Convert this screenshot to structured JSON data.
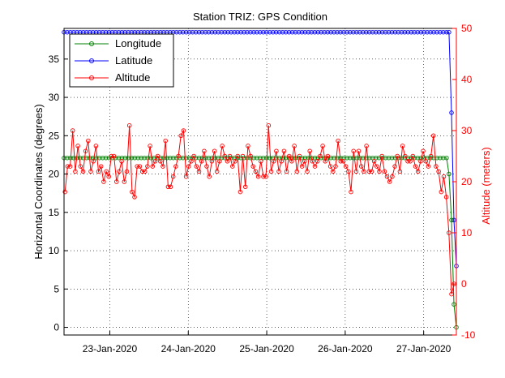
{
  "chart_data": {
    "type": "line",
    "title": "Station TRIZ: GPS Condition",
    "ylabel_left": "Horizontal Coordinates (degrees)",
    "ylabel_right": "Altitude (meters)",
    "x_tick_labels": [
      "23-Jan-2020",
      "24-Jan-2020",
      "25-Jan-2020",
      "26-Jan-2020",
      "27-Jan-2020"
    ],
    "x_tick_dates": [
      "2020-01-23",
      "2020-01-24",
      "2020-01-25",
      "2020-01-26",
      "2020-01-27"
    ],
    "xlim": [
      "2020-01-22 10:00",
      "2020-01-27 10:00"
    ],
    "ylim_left": [
      -1,
      39
    ],
    "yticks_left": [
      0,
      5,
      10,
      15,
      20,
      25,
      30,
      35
    ],
    "ylim_right": [
      -10,
      50
    ],
    "yticks_right": [
      -10,
      0,
      10,
      20,
      30,
      40,
      50
    ],
    "grid": true,
    "legend_position": "top-left",
    "colors": {
      "longitude": "#008000",
      "latitude": "#0000ff",
      "altitude": "#ff0000",
      "axis": "#000000",
      "right_axis": "#ff0000"
    },
    "series": [
      {
        "name": "Longitude",
        "axis": "left",
        "sample_interval_hours": 1,
        "values_const": 22.1,
        "count": 120,
        "tail": [
          20.0,
          14.0,
          3.0,
          0.0
        ]
      },
      {
        "name": "Latitude",
        "axis": "left",
        "sample_interval_hours": 1,
        "values_const": 38.5,
        "count": 120,
        "tail": [
          38.5,
          28.0,
          14.0,
          8.0
        ]
      },
      {
        "name": "Altitude",
        "axis": "right",
        "sample_interval_hours": 1,
        "values": [
          18,
          23,
          23,
          30,
          22,
          27,
          23,
          22,
          26,
          28,
          22,
          24,
          27,
          22,
          23,
          20,
          22,
          21,
          25,
          25,
          20,
          22,
          24,
          20,
          22,
          31,
          18,
          17,
          23,
          23,
          22,
          22,
          23,
          27,
          23,
          24,
          25,
          24,
          23,
          28,
          19,
          19,
          21,
          23,
          25,
          29,
          30,
          21,
          23,
          24,
          25,
          23,
          22,
          24,
          26,
          23,
          21,
          24,
          26,
          22,
          24,
          27,
          25,
          24,
          25,
          23,
          24,
          25,
          18,
          25,
          19,
          27,
          25,
          23,
          22,
          21,
          24,
          21,
          21,
          31,
          22,
          24,
          26,
          22,
          24,
          26,
          22,
          25,
          24,
          27,
          22,
          25,
          23,
          24,
          22,
          26,
          24,
          23,
          24,
          25,
          27,
          24,
          25,
          23,
          22,
          23,
          28,
          24,
          24,
          23,
          22,
          18,
          26,
          22,
          26,
          23,
          22,
          27,
          22,
          22,
          24,
          23,
          22,
          25,
          22,
          21,
          20,
          21,
          23,
          25,
          22,
          27,
          25,
          24,
          24,
          25,
          23,
          22,
          24,
          26,
          24,
          23,
          25,
          29,
          23,
          22,
          18,
          21
        ],
        "tail": [
          17,
          10,
          -2,
          0
        ]
      }
    ]
  }
}
